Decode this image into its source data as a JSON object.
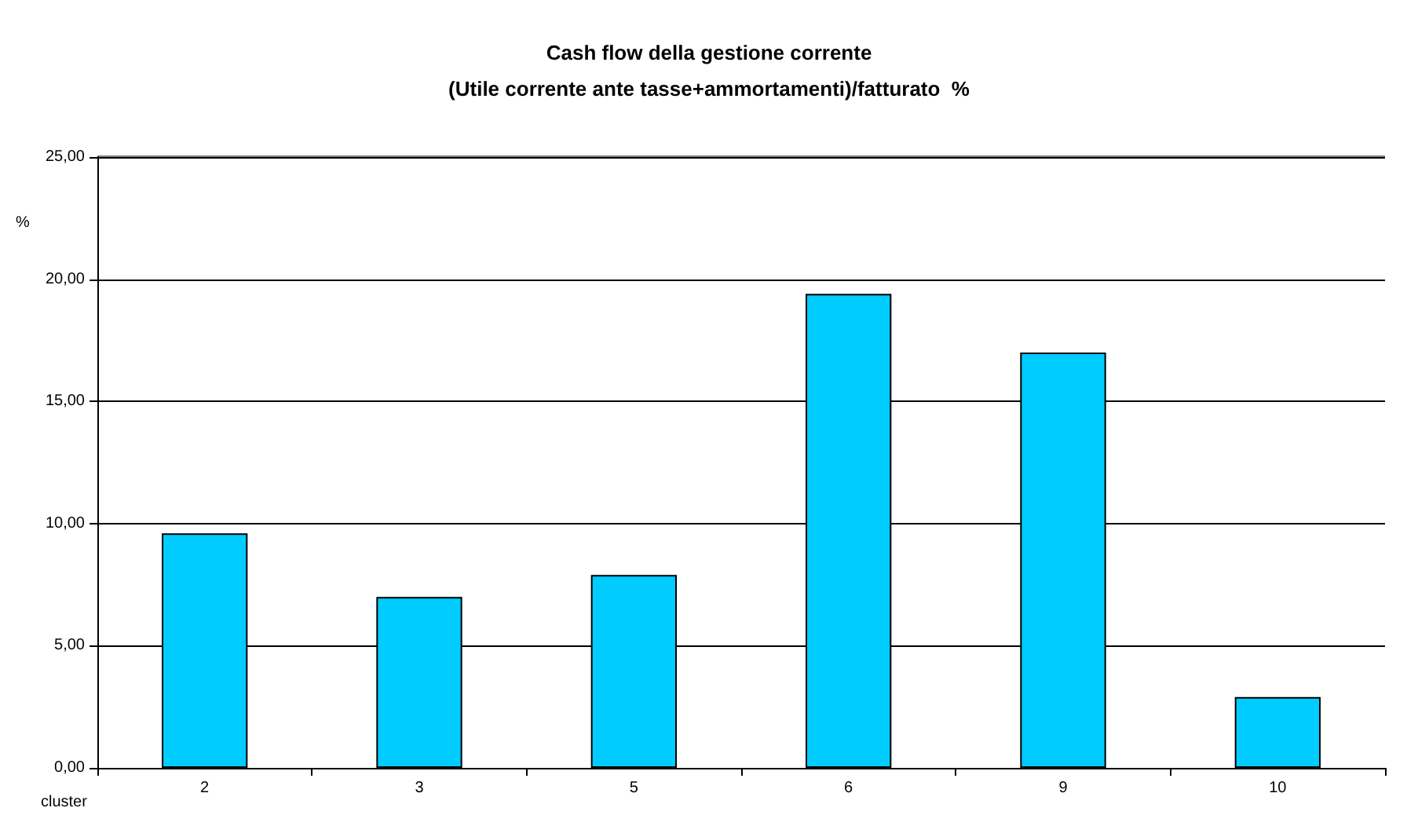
{
  "chart_data": {
    "type": "bar",
    "title": "Cash flow della gestione corrente",
    "subtitle": "(Utile corrente ante tasse+ammortamenti)/fatturato  %",
    "xlabel": "cluster",
    "ylabel": "%",
    "categories": [
      "2",
      "3",
      "5",
      "6",
      "9",
      "10"
    ],
    "series": [
      {
        "color": "#00ccff",
        "values": [
          9.6,
          7.0,
          7.9,
          19.4,
          17.0,
          2.9
        ]
      }
    ],
    "ylim": [
      0,
      25
    ],
    "yticks": [
      {
        "value": 0,
        "label": "0,00"
      },
      {
        "value": 5,
        "label": "5,00"
      },
      {
        "value": 10,
        "label": "10,00"
      },
      {
        "value": 15,
        "label": "15,00"
      },
      {
        "value": 20,
        "label": "20,00"
      },
      {
        "value": 25,
        "label": "25,00"
      }
    ],
    "grid": "y"
  }
}
